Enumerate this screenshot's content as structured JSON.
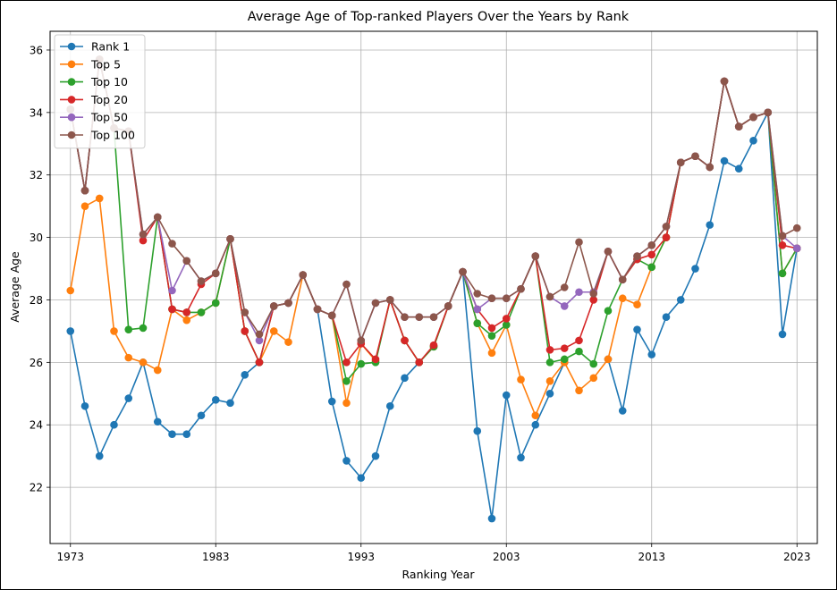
{
  "chart_data": {
    "type": "line",
    "title": "Average Age of Top-ranked Players Over the Years by Rank",
    "xlabel": "Ranking Year",
    "ylabel": "Average Age",
    "xlim": [
      1971.6,
      2024.4
    ],
    "ylim": [
      20.2,
      36.6
    ],
    "xticks": [
      1973,
      1983,
      1993,
      2003,
      2013,
      2023
    ],
    "yticks": [
      22,
      24,
      26,
      28,
      30,
      32,
      34,
      36
    ],
    "grid": true,
    "legend_position": "top-left",
    "x": [
      1973,
      1974,
      1975,
      1976,
      1977,
      1978,
      1979,
      1980,
      1981,
      1982,
      1983,
      1984,
      1985,
      1986,
      1987,
      1988,
      1989,
      1990,
      1991,
      1992,
      1993,
      1994,
      1995,
      1996,
      1997,
      1998,
      1999,
      2000,
      2001,
      2002,
      2003,
      2004,
      2005,
      2006,
      2007,
      2008,
      2009,
      2010,
      2011,
      2012,
      2013,
      2014,
      2015,
      2016,
      2017,
      2018,
      2019,
      2020,
      2021,
      2022,
      2023
    ],
    "series": [
      {
        "name": "Rank 1",
        "color": "#1f77b4",
        "values": [
          27.0,
          24.6,
          23.0,
          24.0,
          24.85,
          26.0,
          24.1,
          23.7,
          23.7,
          24.3,
          24.8,
          24.7,
          25.6,
          26.0,
          null,
          null,
          null,
          27.7,
          24.75,
          22.85,
          22.3,
          23.0,
          24.6,
          25.5,
          26.0,
          26.5,
          27.8,
          28.9,
          23.8,
          21.0,
          24.95,
          22.95,
          24.0,
          25.0,
          26.0,
          null,
          null,
          26.1,
          24.45,
          27.05,
          26.25,
          27.45,
          28.0,
          29.0,
          30.4,
          32.45,
          32.2,
          33.1,
          34.0,
          26.9,
          29.65
        ]
      },
      {
        "name": "Top 5",
        "color": "#ff7f0e",
        "values": [
          28.3,
          31.0,
          31.25,
          27.0,
          26.15,
          26.0,
          25.75,
          27.7,
          27.35,
          27.6,
          27.9,
          29.95,
          27.0,
          26.0,
          27.0,
          26.65,
          28.8,
          27.7,
          27.5,
          24.7,
          26.6,
          26.05,
          28.0,
          26.7,
          26.0,
          26.5,
          27.8,
          28.9,
          27.25,
          26.3,
          27.2,
          25.45,
          24.3,
          25.4,
          26.0,
          25.1,
          25.5,
          26.1,
          28.05,
          27.85,
          29.05,
          30.0,
          32.4,
          32.6,
          32.25,
          35.0,
          33.55,
          33.85,
          34.0,
          28.85,
          29.65
        ]
      },
      {
        "name": "Top 10",
        "color": "#2ca02c",
        "values": [
          34.1,
          31.5,
          35.7,
          33.5,
          27.05,
          27.1,
          30.65,
          27.7,
          27.6,
          27.6,
          27.9,
          29.95,
          27.0,
          26.0,
          27.8,
          27.9,
          28.8,
          27.7,
          27.5,
          25.4,
          25.95,
          26.0,
          28.0,
          26.7,
          26.0,
          26.5,
          27.8,
          28.9,
          27.25,
          26.85,
          27.2,
          28.35,
          29.4,
          26.0,
          26.1,
          26.35,
          25.95,
          27.65,
          28.65,
          29.3,
          29.05,
          30.0,
          32.4,
          32.6,
          32.25,
          35.0,
          33.55,
          33.85,
          34.0,
          28.85,
          29.65
        ]
      },
      {
        "name": "Top 20",
        "color": "#d62728",
        "values": [
          34.1,
          31.5,
          35.7,
          33.5,
          33.4,
          29.9,
          30.65,
          27.7,
          27.6,
          28.5,
          28.85,
          29.95,
          27.0,
          26.0,
          27.8,
          27.9,
          28.8,
          27.7,
          27.5,
          26.0,
          26.6,
          26.1,
          28.0,
          26.7,
          26.0,
          26.55,
          27.8,
          28.9,
          27.7,
          27.1,
          27.4,
          28.35,
          29.4,
          26.4,
          26.45,
          26.7,
          28.0,
          29.55,
          28.65,
          29.3,
          29.45,
          30.0,
          32.4,
          32.6,
          32.25,
          35.0,
          33.55,
          33.85,
          34.0,
          29.75,
          29.65
        ]
      },
      {
        "name": "Top 50",
        "color": "#9467bd",
        "values": [
          34.1,
          31.5,
          35.7,
          33.5,
          33.4,
          30.1,
          30.65,
          28.3,
          29.25,
          28.6,
          28.85,
          29.95,
          27.6,
          26.7,
          27.8,
          27.9,
          28.8,
          27.7,
          27.5,
          28.5,
          26.7,
          27.9,
          28.0,
          27.45,
          27.45,
          27.45,
          27.8,
          28.9,
          27.7,
          28.05,
          28.05,
          28.35,
          29.4,
          28.1,
          27.8,
          28.25,
          28.25,
          29.55,
          28.65,
          29.4,
          29.75,
          30.35,
          32.4,
          32.6,
          32.25,
          35.0,
          33.55,
          33.85,
          34.0,
          30.05,
          29.65
        ]
      },
      {
        "name": "Top 100",
        "color": "#8c564b",
        "values": [
          34.1,
          31.5,
          35.7,
          33.5,
          33.4,
          30.1,
          30.65,
          29.8,
          29.25,
          28.6,
          28.85,
          29.95,
          27.6,
          26.9,
          27.8,
          27.9,
          28.8,
          27.7,
          27.5,
          28.5,
          26.7,
          27.9,
          28.0,
          27.45,
          27.45,
          27.45,
          27.8,
          28.9,
          28.2,
          28.05,
          28.05,
          28.35,
          29.4,
          28.1,
          28.4,
          29.85,
          28.2,
          29.55,
          28.65,
          29.4,
          29.75,
          30.35,
          32.4,
          32.6,
          32.25,
          35.0,
          33.55,
          33.85,
          34.0,
          30.05,
          30.3
        ]
      }
    ]
  }
}
